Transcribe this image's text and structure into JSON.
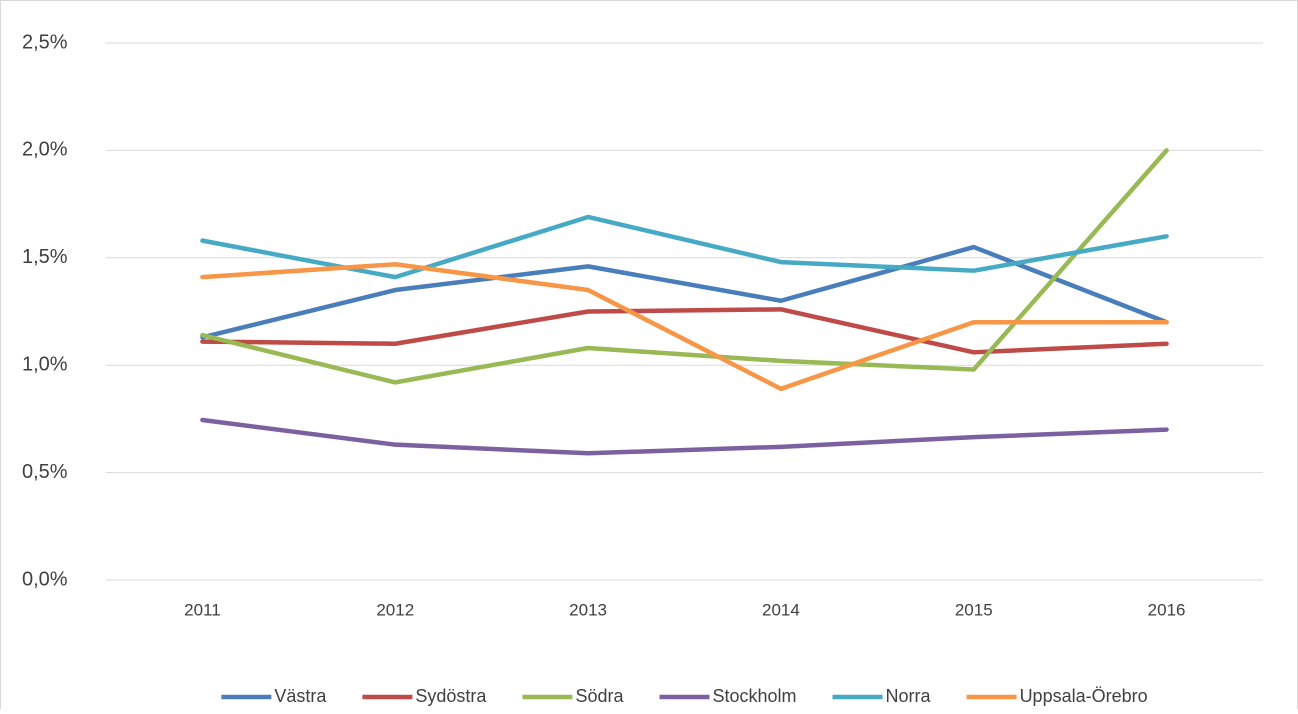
{
  "chart_data": {
    "type": "line",
    "categories": [
      "2011",
      "2012",
      "2013",
      "2014",
      "2015",
      "2016"
    ],
    "series": [
      {
        "name": "Västra",
        "color": "#4a7ebb",
        "values": [
          1.13,
          1.35,
          1.46,
          1.3,
          1.55,
          1.2
        ]
      },
      {
        "name": "Sydöstra",
        "color": "#be4b48",
        "values": [
          1.11,
          1.1,
          1.25,
          1.26,
          1.06,
          1.1
        ]
      },
      {
        "name": "Södra",
        "color": "#98b954",
        "values": [
          1.14,
          0.92,
          1.08,
          1.02,
          0.98,
          2.0
        ]
      },
      {
        "name": "Stockholm",
        "color": "#7d60a0",
        "values": [
          0.745,
          0.63,
          0.59,
          0.62,
          0.665,
          0.7
        ]
      },
      {
        "name": "Norra",
        "color": "#46aac5",
        "values": [
          1.58,
          1.41,
          1.69,
          1.48,
          1.44,
          1.6
        ]
      },
      {
        "name": "Uppsala-Örebro",
        "color": "#f79646",
        "values": [
          1.41,
          1.47,
          1.35,
          0.89,
          1.2,
          1.2
        ]
      }
    ],
    "ylim": [
      0,
      2.5
    ],
    "yticks": [
      {
        "value": 0,
        "label": "0,0%"
      },
      {
        "value": 0.5,
        "label": "0,5%"
      },
      {
        "value": 1.0,
        "label": "1,0%"
      },
      {
        "value": 1.5,
        "label": "1,5%"
      },
      {
        "value": 2.0,
        "label": "2,0%"
      },
      {
        "value": 2.5,
        "label": "2,5%"
      }
    ],
    "grid": true,
    "legend": "bottom"
  }
}
